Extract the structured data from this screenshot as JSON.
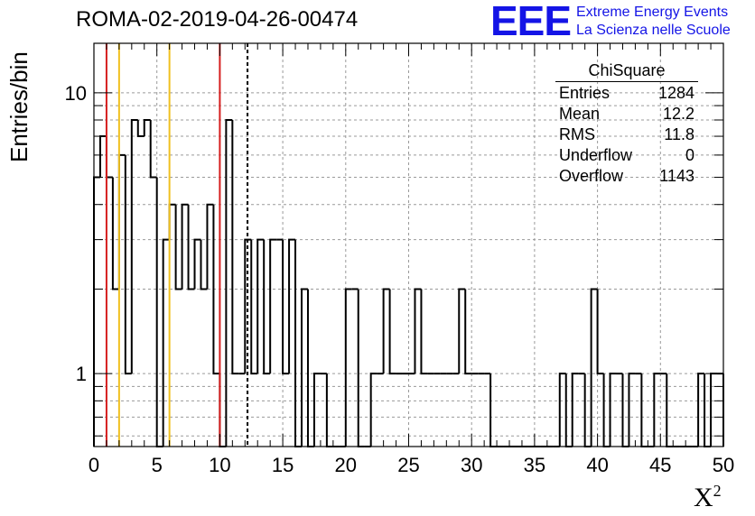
{
  "chart_data": {
    "type": "bar",
    "title": "ROMA-02-2019-04-26-00474",
    "xlabel": "X",
    "xlabel_sup": "2",
    "ylabel": "Entries/bin",
    "xlim": [
      0,
      50
    ],
    "ylim": [
      0.55,
      15
    ],
    "yscale": "log",
    "grid": true,
    "bin_width": 0.5,
    "values": [
      5,
      7,
      5,
      2,
      6,
      1,
      8,
      7,
      8,
      5,
      0,
      3,
      4,
      2,
      4,
      2,
      3,
      2,
      4,
      1,
      0,
      8,
      1,
      1,
      3,
      1,
      3,
      1,
      3,
      3,
      1,
      3,
      0,
      2,
      0,
      1,
      1,
      0,
      0,
      0,
      2,
      2,
      0,
      0,
      1,
      1,
      2,
      1,
      1,
      1,
      1,
      2,
      1,
      1,
      1,
      1,
      1,
      1,
      2,
      1,
      1,
      1,
      1,
      0,
      0,
      0,
      0,
      0,
      0,
      0,
      0,
      0,
      0,
      0,
      1,
      0,
      1,
      1,
      0,
      2,
      1,
      0,
      1,
      1,
      0,
      1,
      1,
      0,
      0,
      1,
      1,
      0,
      0,
      0,
      0,
      0,
      1,
      0,
      1,
      1
    ],
    "vlines": [
      {
        "x": 1,
        "color": "#d61f1f",
        "style": "solid"
      },
      {
        "x": 2,
        "color": "#f0c020",
        "style": "solid"
      },
      {
        "x": 6,
        "color": "#f0c020",
        "style": "solid"
      },
      {
        "x": 10,
        "color": "#d61f1f",
        "style": "solid"
      },
      {
        "x": 12.2,
        "color": "#000000",
        "style": "dashed"
      }
    ],
    "xticks": [
      0,
      5,
      10,
      15,
      20,
      25,
      30,
      35,
      40,
      45,
      50
    ],
    "xtick_labels": [
      "0",
      "5",
      "10",
      "15",
      "20",
      "25",
      "30",
      "35",
      "40",
      "45",
      "50"
    ],
    "yticks": [
      1,
      10
    ],
    "ytick_labels": [
      "1",
      "10"
    ]
  },
  "stats": {
    "title": "ChiSquare",
    "rows": [
      {
        "label": "Entries",
        "value": "1284"
      },
      {
        "label": "Mean",
        "value": "12.2"
      },
      {
        "label": "RMS",
        "value": "11.8"
      },
      {
        "label": "Underflow",
        "value": "0"
      },
      {
        "label": "Overflow",
        "value": "1143"
      }
    ]
  },
  "logo": {
    "text": "EEE",
    "line1": "Extreme Energy Events",
    "line2": "La Scienza nelle Scuole",
    "color": "#1414e6"
  }
}
